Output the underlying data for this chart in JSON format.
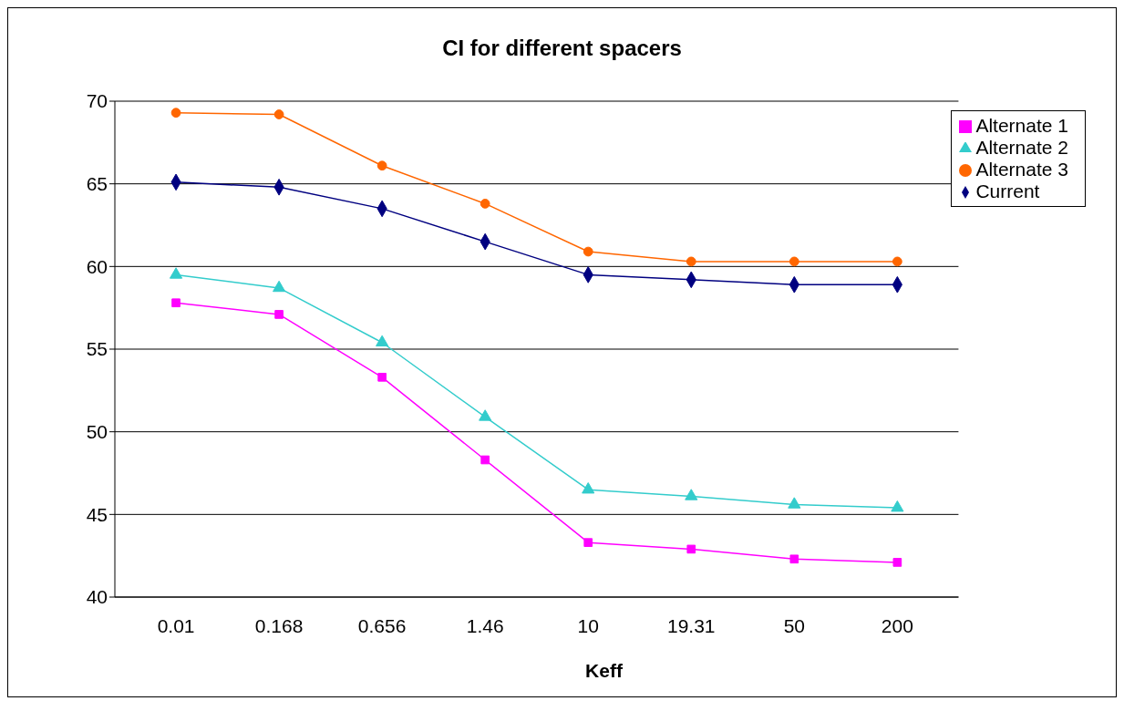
{
  "chart_data": {
    "type": "line",
    "title": "CI for different spacers",
    "xlabel": "Keff",
    "categories": [
      "0.01",
      "0.168",
      "0.656",
      "1.46",
      "10",
      "19.31",
      "50",
      "200"
    ],
    "series": [
      {
        "name": "Current",
        "color": "#000080",
        "marker": "diamond",
        "values": [
          65.1,
          64.8,
          63.5,
          61.5,
          59.5,
          59.2,
          58.9,
          58.9
        ]
      },
      {
        "name": "Alternate 1",
        "color": "#ff00ff",
        "marker": "square",
        "values": [
          57.8,
          57.1,
          53.3,
          48.3,
          43.3,
          42.9,
          42.3,
          42.1
        ]
      },
      {
        "name": "Alternate 2",
        "color": "#33cccc",
        "marker": "triangle",
        "values": [
          59.5,
          58.7,
          55.4,
          50.9,
          46.5,
          46.1,
          45.6,
          45.4
        ]
      },
      {
        "name": "Alternate 3",
        "color": "#ff6600",
        "marker": "circle",
        "values": [
          69.3,
          69.2,
          66.1,
          63.8,
          60.9,
          60.3,
          60.3,
          60.3
        ]
      }
    ],
    "ylim": [
      40,
      70
    ],
    "yticks": [
      40,
      45,
      50,
      55,
      60,
      65,
      70
    ],
    "grid": "y",
    "legend": "top right",
    "line_style": "solid"
  }
}
